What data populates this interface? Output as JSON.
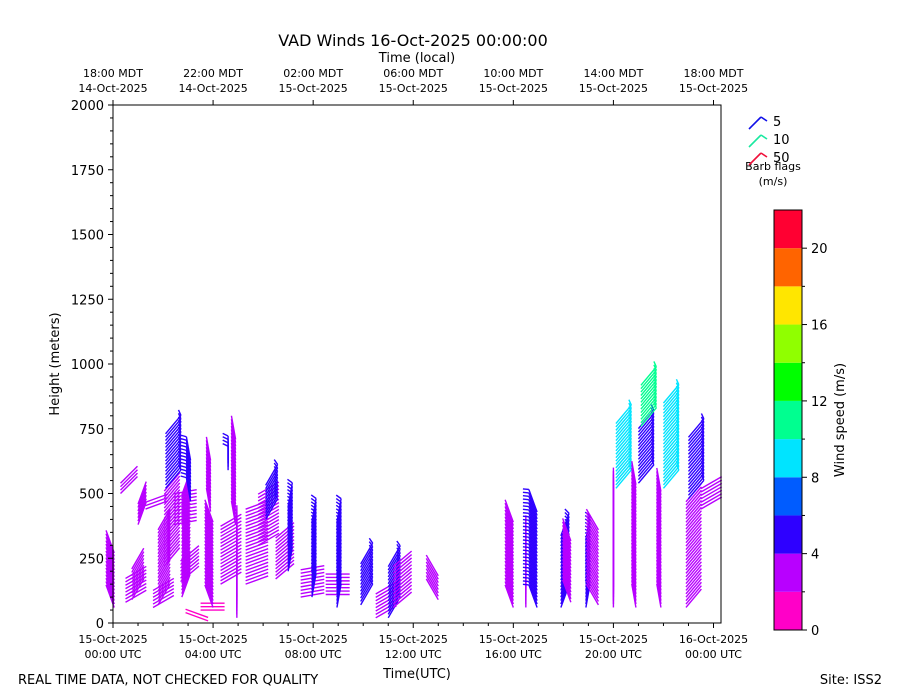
{
  "chart_data": {
    "type": "wind-barb",
    "title": "VAD Winds 16-Oct-2025 00:00:00",
    "xlabel": "Time(UTC)",
    "ylabel": "Height (meters)",
    "top_xlabel": "Time (local)",
    "ylim": [
      0,
      2000
    ],
    "xlim_hours": [
      0,
      24.3
    ],
    "yticks": [
      "0",
      "250",
      "500",
      "750",
      "1000",
      "1250",
      "1500",
      "1750",
      "2000"
    ],
    "ytick_values": [
      0,
      250,
      500,
      750,
      1000,
      1250,
      1500,
      1750,
      2000
    ],
    "xticks_utc": [
      {
        "hour": 0,
        "line1": "15-Oct-2025",
        "line2": "00:00 UTC"
      },
      {
        "hour": 4,
        "line1": "15-Oct-2025",
        "line2": "04:00 UTC"
      },
      {
        "hour": 8,
        "line1": "15-Oct-2025",
        "line2": "08:00 UTC"
      },
      {
        "hour": 12,
        "line1": "15-Oct-2025",
        "line2": "12:00 UTC"
      },
      {
        "hour": 16,
        "line1": "15-Oct-2025",
        "line2": "16:00 UTC"
      },
      {
        "hour": 20,
        "line1": "15-Oct-2025",
        "line2": "20:00 UTC"
      },
      {
        "hour": 24,
        "line1": "16-Oct-2025",
        "line2": "00:00 UTC"
      }
    ],
    "xticks_local": [
      {
        "hour": 0,
        "line1": "18:00 MDT",
        "line2": "14-Oct-2025"
      },
      {
        "hour": 4,
        "line1": "22:00 MDT",
        "line2": "14-Oct-2025"
      },
      {
        "hour": 8,
        "line1": "02:00 MDT",
        "line2": "15-Oct-2025"
      },
      {
        "hour": 12,
        "line1": "06:00 MDT",
        "line2": "15-Oct-2025"
      },
      {
        "hour": 16,
        "line1": "10:00 MDT",
        "line2": "15-Oct-2025"
      },
      {
        "hour": 20,
        "line1": "14:00 MDT",
        "line2": "15-Oct-2025"
      },
      {
        "hour": 24,
        "line1": "18:00 MDT",
        "line2": "15-Oct-2025"
      }
    ],
    "barb_legend": {
      "title_line1": "Barb flags",
      "title_line2": "(m/s)",
      "entries": [
        {
          "value": "5",
          "color": "#1010e8"
        },
        {
          "value": "10",
          "color": "#19e8a0"
        },
        {
          "value": "50",
          "color": "#f0103a"
        }
      ]
    },
    "colorbar": {
      "label": "Wind speed (m/s)",
      "range": [
        0,
        22
      ],
      "bin_width": 2,
      "colors": [
        "#ff00c8",
        "#b800ff",
        "#2e00ff",
        "#005cff",
        "#00e4ff",
        "#00ff90",
        "#00ff00",
        "#90ff00",
        "#ffe600",
        "#ff6400",
        "#ff0032"
      ],
      "ticks": [
        "0",
        "4",
        "8",
        "12",
        "16",
        "20"
      ],
      "tick_values": [
        0,
        4,
        8,
        12,
        16,
        20
      ]
    },
    "series": [
      {
        "hour": 0.05,
        "heights": [
          60,
          280
        ],
        "speed": 3,
        "dir": 20
      },
      {
        "hour": 0.3,
        "heights": [
          500,
          540
        ],
        "speed": 2,
        "dir": 315
      },
      {
        "hour": 0.5,
        "heights": [
          80,
          180
        ],
        "speed": 3,
        "dir": 300
      },
      {
        "hour": 0.75,
        "heights": [
          90,
          220
        ],
        "speed": 3,
        "dir": 330
      },
      {
        "hour": 1.0,
        "heights": [
          380,
          460
        ],
        "speed": 2,
        "dir": 340
      },
      {
        "hour": 1.3,
        "heights": [
          440,
          470
        ],
        "speed": 2,
        "dir": 290
      },
      {
        "hour": 1.6,
        "heights": [
          60,
          130
        ],
        "speed": 3,
        "dir": 300
      },
      {
        "hour": 1.8,
        "heights": [
          70,
          370
        ],
        "speed": 3,
        "dir": 330
      },
      {
        "hour": 2.05,
        "heights": [
          220,
          520
        ],
        "speed": 3,
        "dir": 320
      },
      {
        "hour": 2.1,
        "heights": [
          520,
          740
        ],
        "speed": 5,
        "dir": 320
      },
      {
        "hour": 2.4,
        "heights": [
          380,
          510
        ],
        "speed": 2,
        "dir": 280
      },
      {
        "hour": 2.7,
        "heights": [
          160,
          250
        ],
        "speed": 3,
        "dir": 310
      },
      {
        "hour": 2.75,
        "heights": [
          100,
          500
        ],
        "speed": 2,
        "dir": 340
      },
      {
        "hour": 3.1,
        "heights": [
          470,
          630
        ],
        "speed": 5,
        "dir": 10
      },
      {
        "hour": 2.9,
        "heights": [
          40,
          60
        ],
        "speed": 1,
        "dir": 250
      },
      {
        "hour": 3.5,
        "heights": [
          50,
          80
        ],
        "speed": 1,
        "dir": 270
      },
      {
        "hour": 3.9,
        "heights": [
          430,
          630
        ],
        "speed": 3,
        "dir": 10
      },
      {
        "hour": 4.0,
        "heights": [
          60,
          400
        ],
        "speed": 2,
        "dir": 20
      },
      {
        "hour": 4.3,
        "heights": [
          150,
          380
        ],
        "speed": 2,
        "dir": 300
      },
      {
        "hour": 4.6,
        "heights": [
          590,
          640
        ],
        "speed": 5,
        "dir": 0
      },
      {
        "hour": 4.9,
        "heights": [
          380,
          720
        ],
        "speed": 3,
        "dir": 10
      },
      {
        "hour": 4.95,
        "heights": [
          20,
          370
        ],
        "speed": 2,
        "dir": 0
      },
      {
        "hour": 5.3,
        "heights": [
          150,
          450
        ],
        "speed": 2,
        "dir": 290
      },
      {
        "hour": 5.8,
        "heights": [
          300,
          500
        ],
        "speed": 2,
        "dir": 300
      },
      {
        "hour": 6.1,
        "heights": [
          400,
          540
        ],
        "speed": 4,
        "dir": 330
      },
      {
        "hour": 6.5,
        "heights": [
          170,
          330
        ],
        "speed": 2,
        "dir": 310
      },
      {
        "hour": 7.0,
        "heights": [
          200,
          460
        ],
        "speed": 4,
        "dir": 350
      },
      {
        "hour": 7.5,
        "heights": [
          100,
          210
        ],
        "speed": 2,
        "dir": 280
      },
      {
        "hour": 7.95,
        "heights": [
          100,
          400
        ],
        "speed": 4,
        "dir": 350
      },
      {
        "hour": 8.5,
        "heights": [
          110,
          200
        ],
        "speed": 2,
        "dir": 270
      },
      {
        "hour": 8.95,
        "heights": [
          60,
          400
        ],
        "speed": 4,
        "dir": 350
      },
      {
        "hour": 9.9,
        "heights": [
          70,
          230
        ],
        "speed": 4,
        "dir": 330
      },
      {
        "hour": 10.5,
        "heights": [
          20,
          120
        ],
        "speed": 2,
        "dir": 300
      },
      {
        "hour": 11.0,
        "heights": [
          20,
          230
        ],
        "speed": 4,
        "dir": 330
      },
      {
        "hour": 11.2,
        "heights": [
          60,
          230
        ],
        "speed": 2,
        "dir": 310
      },
      {
        "hour": 13.0,
        "heights": [
          90,
          190
        ],
        "speed": 2,
        "dir": 30
      },
      {
        "hour": 16.0,
        "heights": [
          60,
          390
        ],
        "speed": 2,
        "dir": 20
      },
      {
        "hour": 16.5,
        "heights": [
          60,
          330
        ],
        "speed": 2,
        "dir": 0
      },
      {
        "hour": 16.95,
        "heights": [
          60,
          430
        ],
        "speed": 4,
        "dir": 20
      },
      {
        "hour": 17.9,
        "heights": [
          60,
          340
        ],
        "speed": 4,
        "dir": 340
      },
      {
        "hour": 18.3,
        "heights": [
          80,
          320
        ],
        "speed": 2,
        "dir": 20
      },
      {
        "hour": 18.9,
        "heights": [
          60,
          330
        ],
        "speed": 4,
        "dir": 350
      },
      {
        "hour": 19.4,
        "heights": [
          70,
          370
        ],
        "speed": 2,
        "dir": 30
      },
      {
        "hour": 20.0,
        "heights": [
          60,
          520
        ],
        "speed": 2,
        "dir": 0
      },
      {
        "hour": 20.1,
        "heights": [
          520,
          780
        ],
        "speed": 8,
        "dir": 320
      },
      {
        "hour": 20.9,
        "heights": [
          60,
          540
        ],
        "speed": 2,
        "dir": 10
      },
      {
        "hour": 21.0,
        "heights": [
          540,
          760
        ],
        "speed": 5,
        "dir": 320
      },
      {
        "hour": 21.1,
        "heights": [
          760,
          920
        ],
        "speed": 10,
        "dir": 320
      },
      {
        "hour": 21.9,
        "heights": [
          60,
          520
        ],
        "speed": 3,
        "dir": 10
      },
      {
        "hour": 22.0,
        "heights": [
          520,
          860
        ],
        "speed": 8,
        "dir": 320
      },
      {
        "hour": 22.9,
        "heights": [
          60,
          480
        ],
        "speed": 3,
        "dir": 320
      },
      {
        "hour": 23.0,
        "heights": [
          480,
          720
        ],
        "speed": 5,
        "dir": 320
      },
      {
        "hour": 23.5,
        "heights": [
          440,
          520
        ],
        "speed": 3,
        "dir": 300
      }
    ]
  },
  "footer": {
    "disclaimer": "REAL TIME DATA, NOT CHECKED FOR QUALITY",
    "site": "Site: ISS2"
  }
}
